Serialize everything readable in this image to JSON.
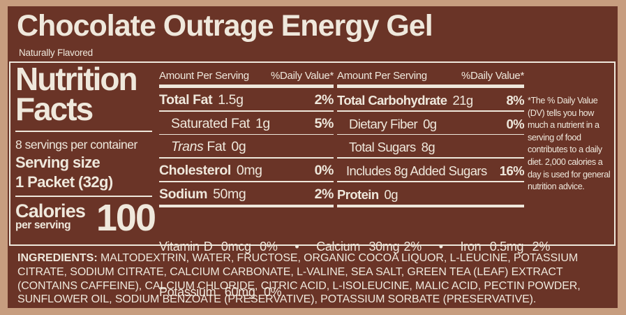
{
  "colors": {
    "border_tan": "#C79D7F",
    "panel_brown": "#6A3427",
    "cream_text": "#EFE8DC"
  },
  "header": {
    "title": "Chocolate Outrage Energy Gel",
    "subtitle": "Naturally Flavored"
  },
  "facts": {
    "title_line1": "Nutrition",
    "title_line2": "Facts",
    "servings_per_container": "8 servings per container",
    "serving_size_label": "Serving size",
    "serving_size_value": "1 Packet (32g)",
    "calories_label": "Calories",
    "calories_sublabel": "per serving",
    "calories_value": "100",
    "amount_header": "Amount Per Serving",
    "dv_header": "%Daily Value*",
    "column1": {
      "rows": [
        {
          "name": "Total Fat",
          "amount": "1.5g",
          "dv": "2%",
          "bold": true,
          "indent": 0,
          "sep": "thin"
        },
        {
          "name": "Saturated Fat",
          "amount": "1g",
          "dv": "5%",
          "bold": false,
          "indent": 1,
          "sep": "thin"
        },
        {
          "name_italic": "Trans",
          "name": " Fat",
          "amount": "0g",
          "dv": "",
          "bold": false,
          "indent": 1,
          "sep": "thin"
        },
        {
          "name": "Cholesterol",
          "amount": "0mg",
          "dv": "0%",
          "bold": true,
          "indent": 0,
          "sep": "med"
        },
        {
          "name": "Sodium",
          "amount": "50mg",
          "dv": "2%",
          "bold": true,
          "indent": 0,
          "sep": "none"
        }
      ]
    },
    "column2": {
      "rows": [
        {
          "name": "Total Carbohydrate",
          "amount": "21g",
          "dv": "8%",
          "bold": true,
          "indent": 0,
          "sep": "thin"
        },
        {
          "name": "Dietary Fiber",
          "amount": "0g",
          "dv": "0%",
          "bold": false,
          "indent": 1,
          "sep": "thin"
        },
        {
          "name": "Total Sugars",
          "amount": "8g",
          "dv": "",
          "bold": false,
          "indent": 1,
          "sep": "thin"
        },
        {
          "name": "Includes 8g Added Sugars",
          "amount": "",
          "dv": "16%",
          "bold": false,
          "indent": 2,
          "sep": "med"
        },
        {
          "name": "Protein",
          "amount": "0g",
          "dv": "",
          "bold": true,
          "indent": 0,
          "sep": "none"
        }
      ]
    },
    "micronutrients_line1": "Vitamin D  0mcg  0%    •    Calcium  30mg 2%    •    Iron  0.5mg  2%",
    "micronutrients_line2": "Potassium  60mg  0%",
    "footnote": "*The % Daily Value (DV) tells you how much a nutrient in a serving of food contributes to a daily diet. 2,000 calories a day is used for general nutrition advice."
  },
  "ingredients": {
    "label": "INGREDIENTS:",
    "text": " MALTODEXTRIN, WATER, FRUCTOSE, ORGANIC COCOA LIQUOR, L-LEUCINE, POTASSIUM CITRATE, SODIUM CITRATE, CALCIUM CARBONATE, L-VALINE, SEA SALT, GREEN TEA (LEAF) EXTRACT (CONTAINS CAFFEINE), CALCIUM CHLORIDE, CITRIC ACID, L-ISOLEUCINE, MALIC ACID, PECTIN POWDER, SUNFLOWER OIL, SODIUM BENZOATE (PRESERVATIVE), POTASSIUM SORBATE (PRESERVATIVE)."
  }
}
